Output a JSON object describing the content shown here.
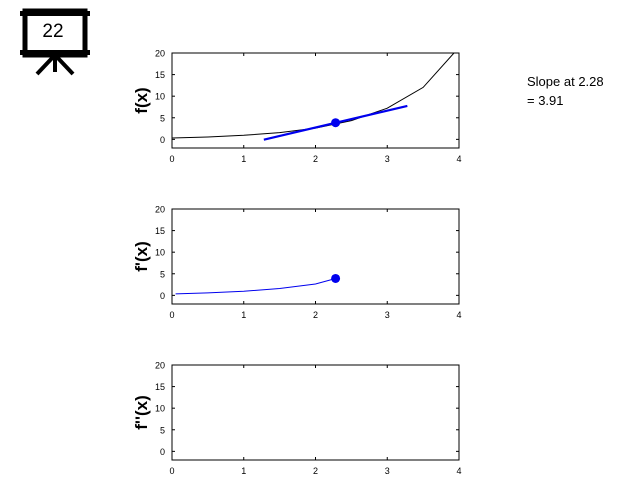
{
  "slide": {
    "number": "22",
    "icon": "presentation-board-icon"
  },
  "annotation": {
    "line1": "Slope at 2.28",
    "line2": "= 3.91"
  },
  "colors": {
    "accent": "#0000ee",
    "curve": "#000000",
    "axis": "#000000"
  },
  "chart_data": [
    {
      "type": "line",
      "title": "",
      "xlabel": "",
      "ylabel": "f(x)",
      "xlim": [
        0,
        4
      ],
      "ylim": [
        -2,
        20
      ],
      "xticks": [
        0,
        1,
        2,
        3,
        4
      ],
      "yticks": [
        0,
        5,
        10,
        15,
        20
      ],
      "grid": false,
      "series": [
        {
          "role": "curve",
          "color": "#000000",
          "x": [
            0,
            0.5,
            1,
            1.5,
            2,
            2.5,
            3,
            3.5,
            3.93
          ],
          "y": [
            0.33,
            0.56,
            0.94,
            1.56,
            2.6,
            4.34,
            7.22,
            12.03,
            20
          ]
        },
        {
          "role": "tangent",
          "color": "#0000ee",
          "x": [
            1.28,
            3.28
          ],
          "y": [
            -0.07,
            7.75
          ]
        },
        {
          "role": "point",
          "color": "#0000ee",
          "x": [
            2.28
          ],
          "y": [
            3.85
          ]
        }
      ]
    },
    {
      "type": "line",
      "title": "",
      "xlabel": "",
      "ylabel": "f'(x)",
      "xlim": [
        0,
        4
      ],
      "ylim": [
        -2,
        20
      ],
      "xticks": [
        0,
        1,
        2,
        3,
        4
      ],
      "yticks": [
        0,
        5,
        10,
        15,
        20
      ],
      "grid": false,
      "series": [
        {
          "role": "curve",
          "color": "#0000ee",
          "x": [
            0.05,
            0.5,
            1,
            1.5,
            2,
            2.28
          ],
          "y": [
            0.35,
            0.57,
            0.95,
            1.58,
            2.63,
            3.91
          ]
        },
        {
          "role": "point",
          "color": "#0000ee",
          "x": [
            2.28
          ],
          "y": [
            3.91
          ]
        }
      ]
    },
    {
      "type": "line",
      "title": "",
      "xlabel": "",
      "ylabel": "f''(x)",
      "xlim": [
        0,
        4
      ],
      "ylim": [
        -2,
        20
      ],
      "xticks": [
        0,
        1,
        2,
        3,
        4
      ],
      "yticks": [
        0,
        5,
        10,
        15,
        20
      ],
      "grid": false,
      "series": []
    }
  ]
}
